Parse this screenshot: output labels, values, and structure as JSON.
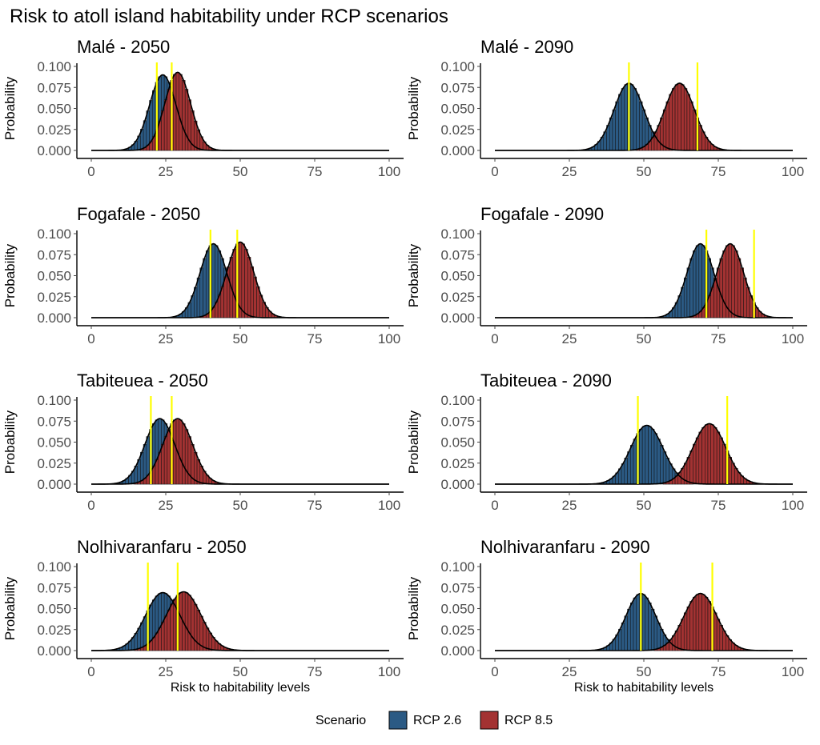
{
  "title": "Risk to atoll island habitability under RCP scenarios",
  "xlabel": "Risk to habitability levels",
  "ylabel": "Probability",
  "legend": {
    "title": "Scenario",
    "entries": [
      {
        "label": "RCP 2.6",
        "color": "#2b5a84"
      },
      {
        "label": "RCP 8.5",
        "color": "#a33232"
      }
    ]
  },
  "colors": {
    "rcp26": "#2b5a84",
    "rcp85": "#a33232",
    "threshold": "#ffff00",
    "curve": "#000000"
  },
  "chart_data": [
    {
      "type": "bar",
      "title": "Malé  -  2050",
      "xlim": [
        0,
        100
      ],
      "ylim": [
        0,
        0.1
      ],
      "xticks": [
        0,
        25,
        50,
        75,
        100
      ],
      "yticks": [
        "0.000",
        "0.025",
        "0.050",
        "0.075",
        "0.100"
      ],
      "series": [
        {
          "name": "RCP 2.6",
          "mean": 24,
          "sd": 4.4,
          "peak": 0.09,
          "threshold": 22
        },
        {
          "name": "RCP 8.5",
          "mean": 29,
          "sd": 4.3,
          "peak": 0.093,
          "threshold": 27
        }
      ]
    },
    {
      "type": "bar",
      "title": "Malé  -  2090",
      "xlim": [
        0,
        100
      ],
      "ylim": [
        0,
        0.1
      ],
      "xticks": [
        0,
        25,
        50,
        75,
        100
      ],
      "yticks": [
        "0.000",
        "0.025",
        "0.050",
        "0.075",
        "0.100"
      ],
      "series": [
        {
          "name": "RCP 2.6",
          "mean": 45,
          "sd": 5,
          "peak": 0.08,
          "threshold": 45
        },
        {
          "name": "RCP 8.5",
          "mean": 62,
          "sd": 5,
          "peak": 0.08,
          "threshold": 68
        }
      ]
    },
    {
      "type": "bar",
      "title": "Fogafale  -  2050",
      "xlim": [
        0,
        100
      ],
      "ylim": [
        0,
        0.1
      ],
      "xticks": [
        0,
        25,
        50,
        75,
        100
      ],
      "yticks": [
        "0.000",
        "0.025",
        "0.050",
        "0.075",
        "0.100"
      ],
      "series": [
        {
          "name": "RCP 2.6",
          "mean": 41,
          "sd": 4.5,
          "peak": 0.088,
          "threshold": 40
        },
        {
          "name": "RCP 8.5",
          "mean": 50,
          "sd": 4.5,
          "peak": 0.09,
          "threshold": 49
        }
      ]
    },
    {
      "type": "bar",
      "title": "Fogafale  -  2090",
      "xlim": [
        0,
        100
      ],
      "ylim": [
        0,
        0.1
      ],
      "xticks": [
        0,
        25,
        50,
        75,
        100
      ],
      "yticks": [
        "0.000",
        "0.025",
        "0.050",
        "0.075",
        "0.100"
      ],
      "series": [
        {
          "name": "RCP 2.6",
          "mean": 69,
          "sd": 4.5,
          "peak": 0.088,
          "threshold": 71
        },
        {
          "name": "RCP 8.5",
          "mean": 79,
          "sd": 4.5,
          "peak": 0.088,
          "threshold": 87
        }
      ]
    },
    {
      "type": "bar",
      "title": "Tabiteuea  -  2050",
      "xlim": [
        0,
        100
      ],
      "ylim": [
        0,
        0.1
      ],
      "xticks": [
        0,
        25,
        50,
        75,
        100
      ],
      "yticks": [
        "0.000",
        "0.025",
        "0.050",
        "0.075",
        "0.100"
      ],
      "series": [
        {
          "name": "RCP 2.6",
          "mean": 23,
          "sd": 5,
          "peak": 0.078,
          "threshold": 20
        },
        {
          "name": "RCP 8.5",
          "mean": 29,
          "sd": 5,
          "peak": 0.078,
          "threshold": 27
        }
      ]
    },
    {
      "type": "bar",
      "title": "Tabiteuea  -  2090",
      "xlim": [
        0,
        100
      ],
      "ylim": [
        0,
        0.1
      ],
      "xticks": [
        0,
        25,
        50,
        75,
        100
      ],
      "yticks": [
        "0.000",
        "0.025",
        "0.050",
        "0.075",
        "0.100"
      ],
      "series": [
        {
          "name": "RCP 2.6",
          "mean": 51,
          "sd": 5.5,
          "peak": 0.07,
          "threshold": 48
        },
        {
          "name": "RCP 8.5",
          "mean": 72,
          "sd": 5.5,
          "peak": 0.072,
          "threshold": 78
        }
      ]
    },
    {
      "type": "bar",
      "title": "Nolhivaranfaru  -  2050",
      "xlim": [
        0,
        100
      ],
      "ylim": [
        0,
        0.1
      ],
      "xticks": [
        0,
        25,
        50,
        75,
        100
      ],
      "yticks": [
        "0.000",
        "0.025",
        "0.050",
        "0.075",
        "0.100"
      ],
      "series": [
        {
          "name": "RCP 2.6",
          "mean": 24,
          "sd": 5.8,
          "peak": 0.069,
          "threshold": 19
        },
        {
          "name": "RCP 8.5",
          "mean": 31,
          "sd": 5.8,
          "peak": 0.07,
          "threshold": 29
        }
      ]
    },
    {
      "type": "bar",
      "title": "Nolhivaranfaru  -  2090",
      "xlim": [
        0,
        100
      ],
      "ylim": [
        0,
        0.1
      ],
      "xticks": [
        0,
        25,
        50,
        75,
        100
      ],
      "yticks": [
        "0.000",
        "0.025",
        "0.050",
        "0.075",
        "0.100"
      ],
      "series": [
        {
          "name": "RCP 2.6",
          "mean": 49,
          "sd": 5,
          "peak": 0.068,
          "threshold": 49
        },
        {
          "name": "RCP 8.5",
          "mean": 69,
          "sd": 5.5,
          "peak": 0.068,
          "threshold": 73
        }
      ]
    }
  ]
}
